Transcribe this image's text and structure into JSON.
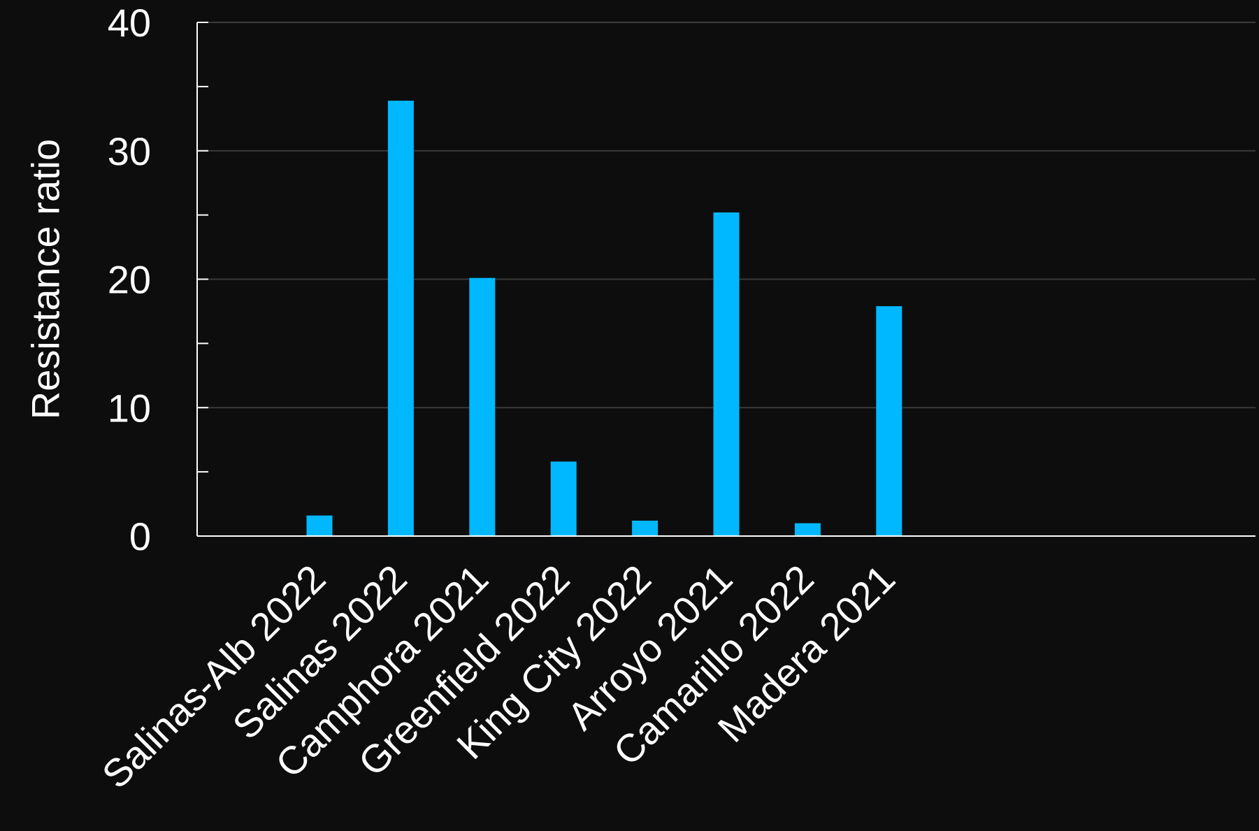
{
  "chart_data": {
    "type": "bar",
    "title": "",
    "xlabel": "",
    "ylabel": "Resistance ratio",
    "categories": [
      "Salinas-Alb 2022",
      "Salinas 2022",
      "Camphora 2021",
      "Greenfield 2022",
      "King City 2022",
      "Arroyo 2021",
      "Camarillo 2022",
      "Madera 2021"
    ],
    "values": [
      1.6,
      33.9,
      20.1,
      5.8,
      1.2,
      25.2,
      1.0,
      17.9
    ],
    "ylim": [
      0,
      40
    ],
    "yticks": [
      0,
      10,
      20,
      30,
      40
    ],
    "y_minor_step": 5,
    "grid": true,
    "legend": "none",
    "colors": {
      "bar": "#00b8ff",
      "background": "#0d0d0d",
      "grid": "#3a3a3a",
      "axis": "#ffffff",
      "text": "#ffffff"
    }
  }
}
